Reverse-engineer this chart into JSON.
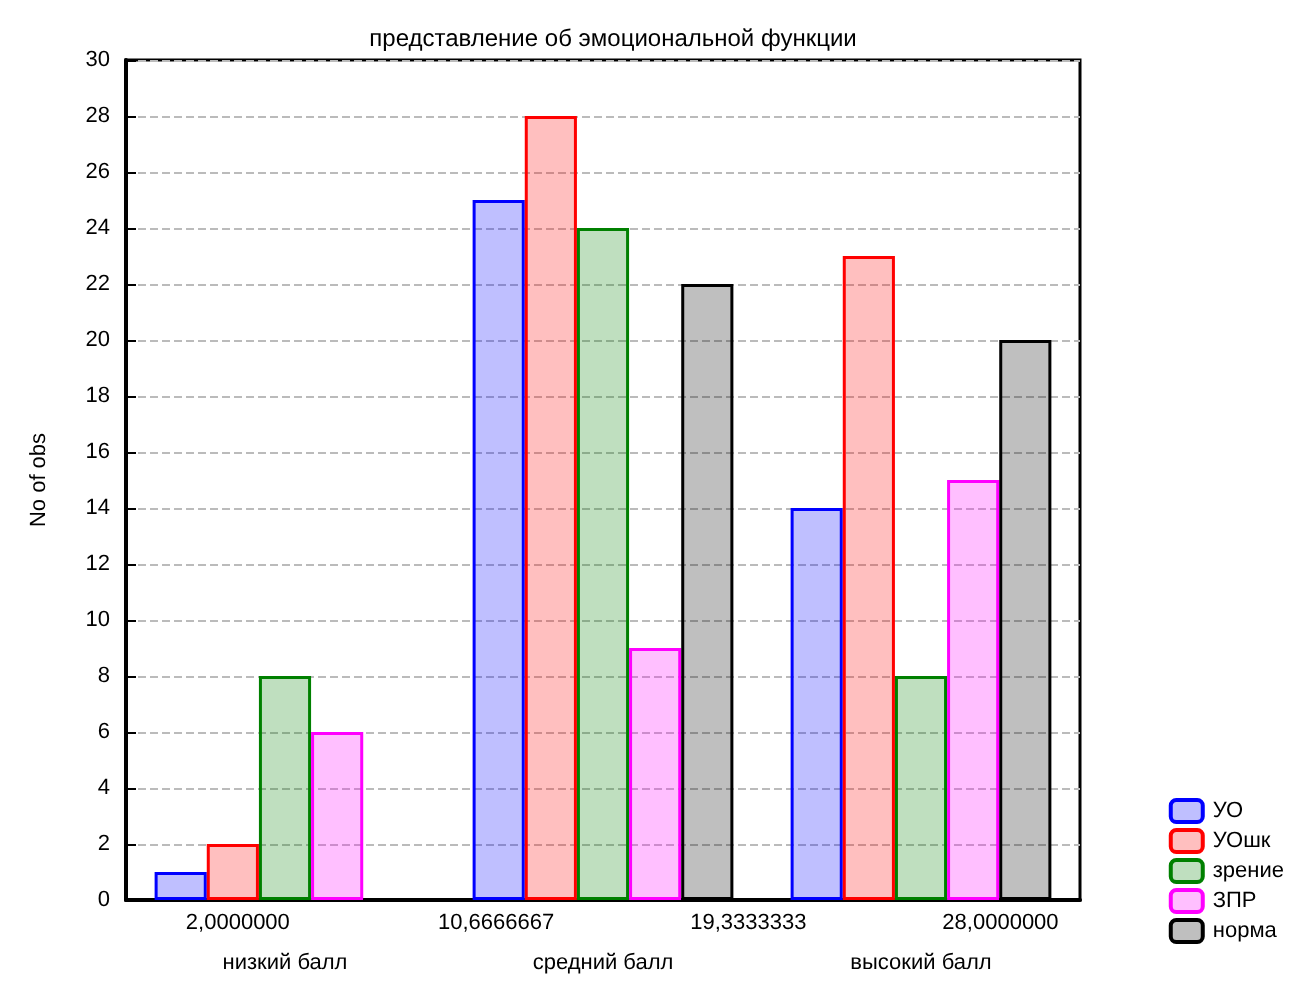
{
  "chart_data": {
    "type": "bar",
    "title": "представление об эмоциональной функции",
    "ylabel": "No of obs",
    "categories": [
      "низкий балл",
      "средний балл",
      "высокий балл"
    ],
    "series": [
      {
        "name": "УО",
        "color": "#0000ff",
        "values": [
          1,
          25,
          14
        ]
      },
      {
        "name": "УОшк",
        "color": "#ff0000",
        "values": [
          2,
          28,
          23
        ]
      },
      {
        "name": "зрение",
        "color": "#008000",
        "values": [
          8,
          24,
          8
        ]
      },
      {
        "name": "ЗПР",
        "color": "#ff00ff",
        "values": [
          6,
          9,
          15
        ]
      },
      {
        "name": "норма",
        "color": "#000000",
        "values": [
          0,
          22,
          20
        ]
      }
    ],
    "annotations": [
      "2,0000000",
      "10,6666667",
      "19,3333333",
      "28,0000000"
    ],
    "ylim": [
      0,
      30
    ],
    "yticks": [
      0,
      2,
      4,
      6,
      8,
      10,
      12,
      14,
      16,
      18,
      20,
      22,
      24,
      26,
      28,
      30
    ],
    "grid": "y",
    "legend": "bottom right"
  }
}
